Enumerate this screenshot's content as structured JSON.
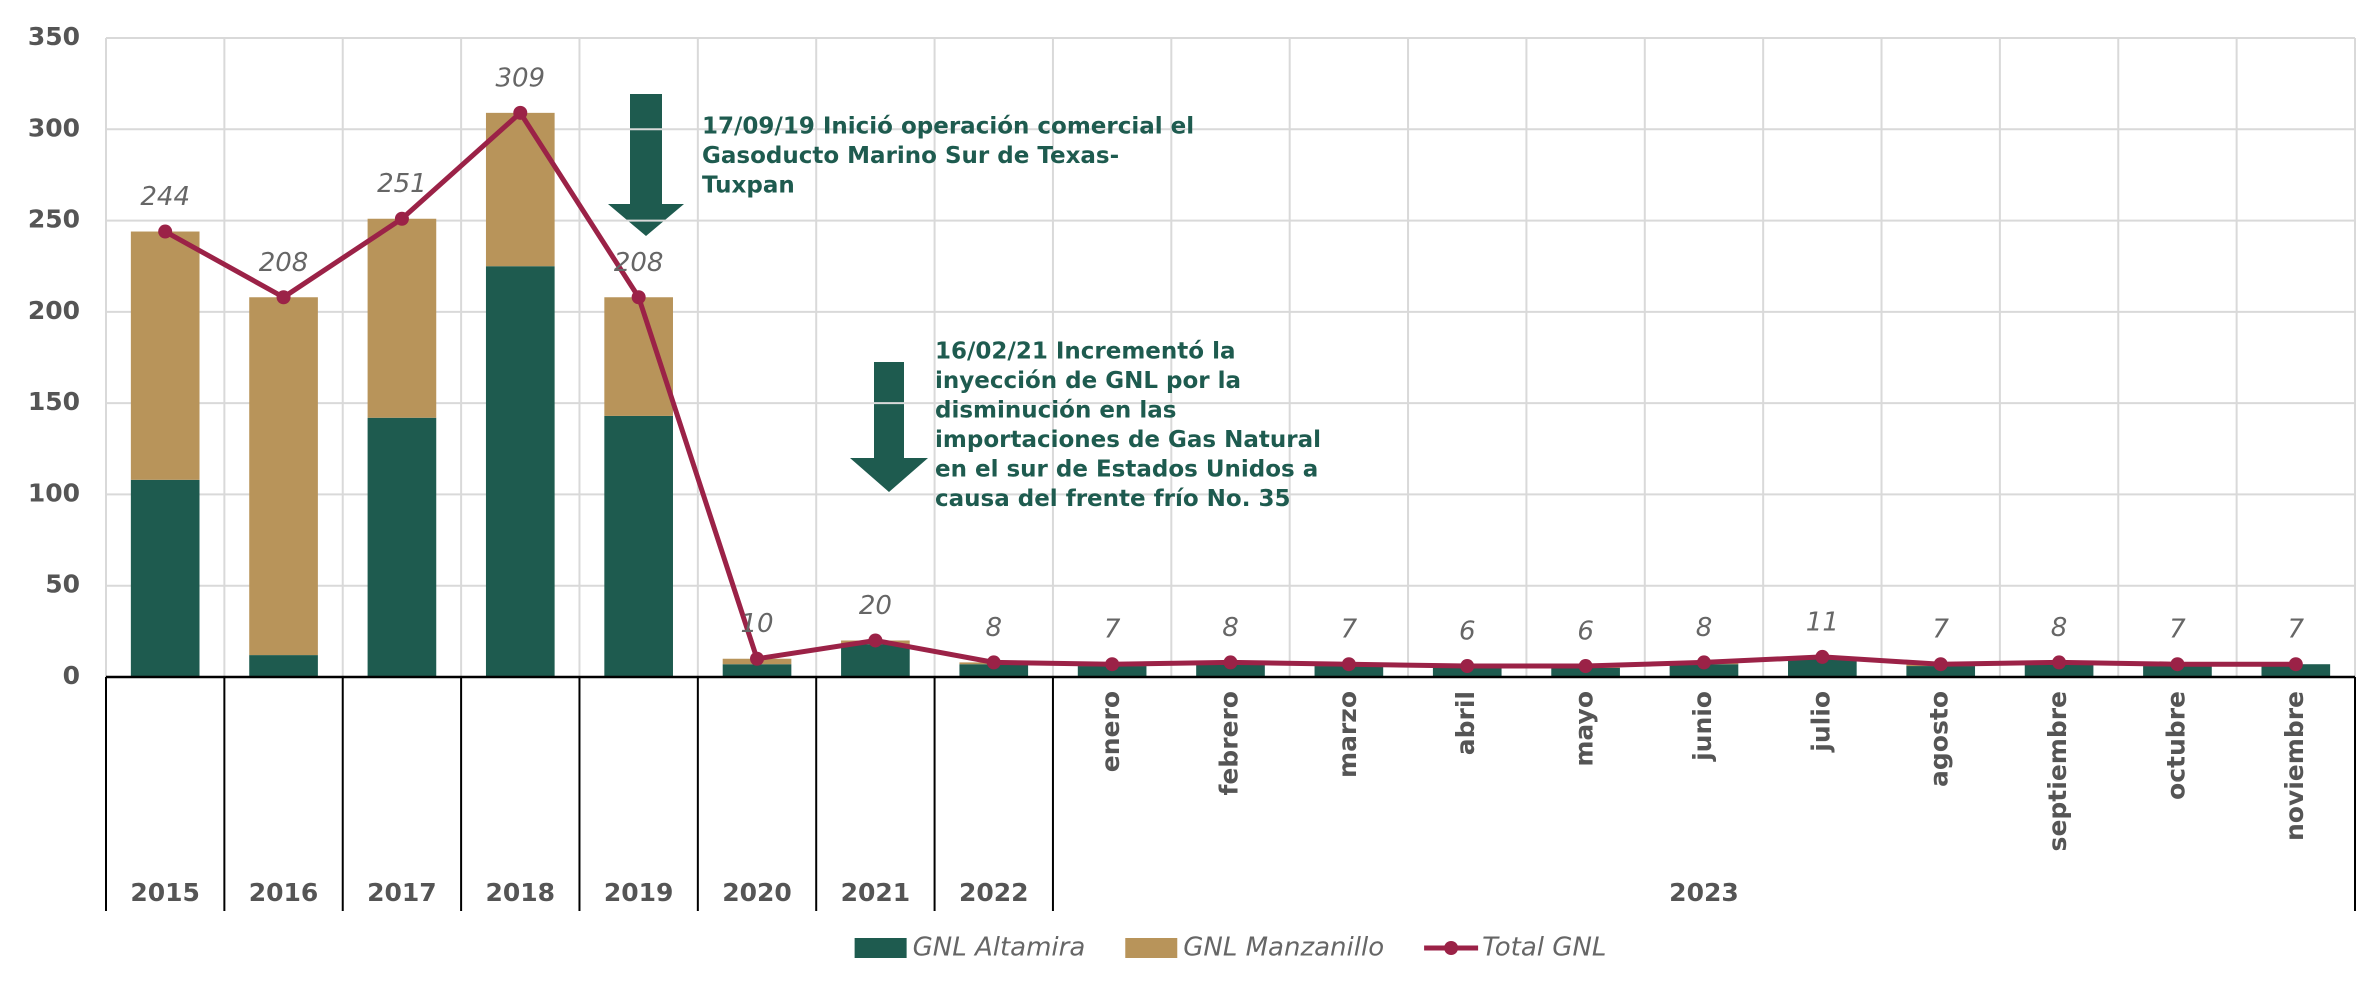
{
  "chart_data": {
    "type": "bar-line",
    "groups": [
      "2015",
      "2016",
      "2017",
      "2018",
      "2019",
      "2020",
      "2021",
      "2022",
      "2023"
    ],
    "categories": [
      null,
      null,
      null,
      null,
      null,
      null,
      null,
      null,
      "enero",
      "febrero",
      "marzo",
      "abril",
      "mayo",
      "junio",
      "julio",
      "agosto",
      "septiembre",
      "octubre",
      "noviembre"
    ],
    "series": [
      {
        "name": "GNL Altamira",
        "type": "bar",
        "color": "#1e5b4f",
        "values": [
          108,
          12,
          142,
          225,
          143,
          7,
          18,
          7,
          6,
          7,
          6,
          5,
          5,
          7,
          10,
          6,
          7,
          6,
          7
        ]
      },
      {
        "name": "GNL Manzanillo",
        "type": "bar",
        "color": "#b8945a",
        "values": [
          136,
          196,
          109,
          84,
          65,
          3,
          2,
          1,
          1,
          1,
          1,
          1,
          1,
          1,
          1,
          1,
          1,
          1,
          0
        ]
      },
      {
        "name": "Total GNL",
        "type": "line",
        "color": "#9b2247",
        "values": [
          244,
          208,
          251,
          309,
          208,
          10,
          20,
          8,
          7,
          8,
          7,
          6,
          6,
          8,
          11,
          7,
          8,
          7,
          7
        ]
      }
    ],
    "stacked": true,
    "ylim": [
      0,
      350
    ],
    "yticks": [
      0,
      50,
      100,
      150,
      200,
      250,
      300,
      350
    ],
    "grid": true,
    "legend": "bottom",
    "annotations": [
      {
        "lines": [
          "17/09/19 Inició operación comercial el",
          "Gasoducto Marino Sur de Texas-",
          "Tuxpan"
        ]
      },
      {
        "lines": [
          "16/02/21 Incrementó la",
          "inyección de GNL por la",
          "disminución en las",
          "importaciones de Gas Natural",
          "en el sur de Estados Unidos a",
          "causa del frente frío No. 35"
        ]
      }
    ]
  }
}
